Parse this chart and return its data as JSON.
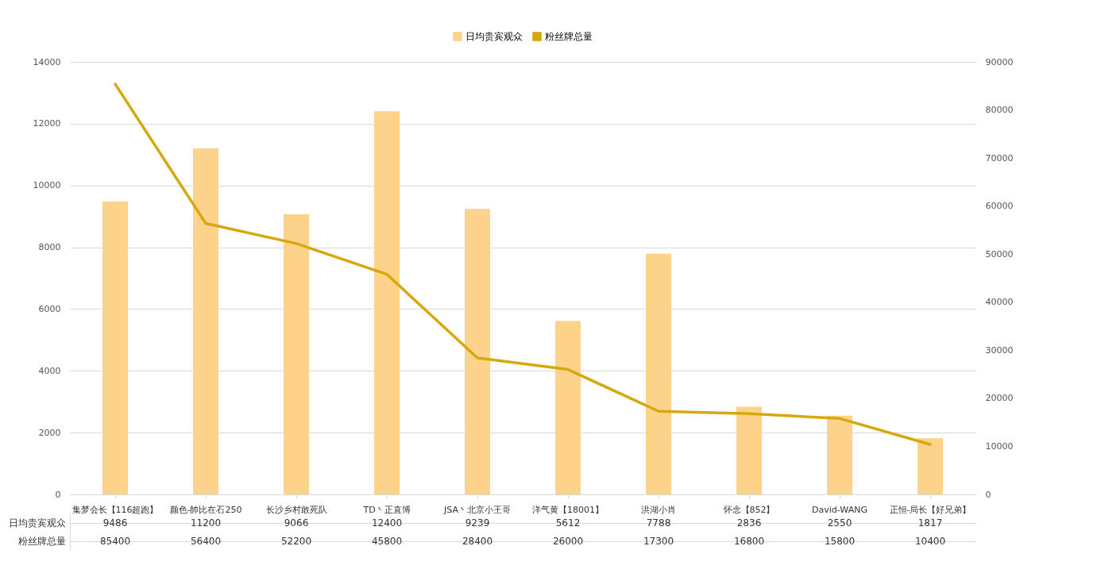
{
  "chart_data": {
    "type": "bar",
    "categories": [
      "集梦会长【116超跑】",
      "颜色-帥比在石250",
      "长沙乡村敢死队",
      "TD丶正直博",
      "JSA丶北京小王哥",
      "洋气黄【18001】",
      "洪湖小肖",
      "怀念【852】",
      "David-WANG",
      "正恒-局长【好兄弟】"
    ],
    "series": [
      {
        "name": "日均贵宾观众",
        "color": "#fdd28a",
        "values": [
          9486,
          11200,
          9066,
          12400,
          9239,
          5612,
          7788,
          2836,
          2550,
          1817
        ]
      },
      {
        "name": "粉丝牌总量",
        "type": "line",
        "axis": "y2",
        "color": "#d6a80d",
        "values": [
          85400,
          56400,
          52200,
          45800,
          28400,
          26000,
          17300,
          16800,
          15800,
          10400
        ]
      }
    ],
    "ylim": [
      0,
      14000
    ],
    "yticks": [
      0,
      2000,
      4000,
      6000,
      8000,
      10000,
      12000,
      14000
    ],
    "y2lim": [
      0,
      90000
    ],
    "y2ticks": [
      0,
      10000,
      20000,
      30000,
      40000,
      50000,
      60000,
      70000,
      80000,
      90000
    ],
    "grid": "y",
    "legend": "top",
    "data_labels": true
  }
}
